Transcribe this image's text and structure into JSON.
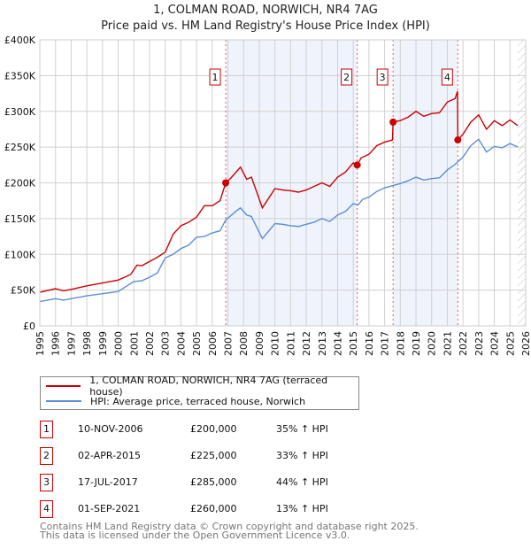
{
  "title": "1, COLMAN ROAD, NORWICH, NR4 7AG",
  "subtitle": "Price paid vs. HM Land Registry's House Price Index (HPI)",
  "colors": {
    "property": "#cc0000",
    "hpi": "#5b8fd4",
    "shade": "#eef3fc"
  },
  "chart_data": {
    "type": "line",
    "xlim": [
      1995,
      2026
    ],
    "ylim": [
      0,
      400000
    ],
    "x_ticks": [
      "1995",
      "1996",
      "1997",
      "1998",
      "1999",
      "2000",
      "2001",
      "2002",
      "2003",
      "2004",
      "2005",
      "2006",
      "2007",
      "2008",
      "2009",
      "2010",
      "2011",
      "2012",
      "2013",
      "2014",
      "2015",
      "2016",
      "2017",
      "2018",
      "2019",
      "2020",
      "2021",
      "2022",
      "2023",
      "2024",
      "2025",
      "2026"
    ],
    "y_ticks": [
      {
        "v": 0,
        "label": "£0"
      },
      {
        "v": 50000,
        "label": "£50K"
      },
      {
        "v": 100000,
        "label": "£100K"
      },
      {
        "v": 150000,
        "label": "£150K"
      },
      {
        "v": 200000,
        "label": "£200K"
      },
      {
        "v": 250000,
        "label": "£250K"
      },
      {
        "v": 300000,
        "label": "£300K"
      },
      {
        "v": 350000,
        "label": "£350K"
      },
      {
        "v": 400000,
        "label": "£400K"
      }
    ],
    "grid": true,
    "series": [
      {
        "name": "1, COLMAN ROAD, NORWICH, NR4 7AG (terraced house)",
        "color": "#cc0000",
        "x": [
          1995,
          1996,
          1996.5,
          1997,
          1998,
          1999,
          2000,
          2000.8,
          2001.2,
          2001.5,
          2002,
          2002.5,
          2003,
          2003.5,
          2004,
          2004.5,
          2005,
          2005.5,
          2006,
          2006.5,
          2006.86,
          2007.2,
          2007.8,
          2008.2,
          2008.5,
          2009.2,
          2010,
          2010.5,
          2011,
          2011.5,
          2012,
          2012.5,
          2013,
          2013.5,
          2014,
          2014.5,
          2015,
          2015.25,
          2015.5,
          2016,
          2016.5,
          2017,
          2017.5,
          2017.54,
          2018,
          2018.5,
          2019,
          2019.5,
          2020,
          2020.5,
          2021,
          2021.5,
          2021.65,
          2021.67,
          2022,
          2022.5,
          2023,
          2023.5,
          2024,
          2024.5,
          2025,
          2025.5
        ],
        "y": [
          47000,
          52000,
          49000,
          51000,
          56000,
          60000,
          64000,
          72000,
          85000,
          84000,
          90000,
          96000,
          103000,
          128000,
          140000,
          145000,
          152000,
          168000,
          168000,
          175000,
          200000,
          207000,
          222000,
          205000,
          208000,
          165000,
          192000,
          190000,
          189000,
          187000,
          190000,
          195000,
          200000,
          195000,
          208000,
          215000,
          228000,
          225000,
          235000,
          240000,
          252000,
          257000,
          260000,
          285000,
          287000,
          292000,
          300000,
          293000,
          297000,
          298000,
          313000,
          318000,
          328000,
          260000,
          268000,
          285000,
          295000,
          275000,
          287000,
          280000,
          288000,
          280000
        ]
      },
      {
        "name": "HPI: Average price, terraced house, Norwich",
        "color": "#5b8fd4",
        "x": [
          1995,
          1996,
          1996.5,
          1997,
          1998,
          1999,
          2000,
          2001,
          2001.5,
          2002,
          2002.5,
          2003,
          2003.5,
          2004,
          2004.5,
          2005,
          2005.5,
          2006,
          2006.5,
          2006.86,
          2007.5,
          2007.8,
          2008.2,
          2008.5,
          2009.2,
          2010,
          2010.5,
          2011,
          2011.5,
          2012,
          2012.5,
          2013,
          2013.5,
          2014,
          2014.5,
          2015,
          2015.3,
          2015.6,
          2016,
          2016.5,
          2017,
          2017.5,
          2018,
          2018.5,
          2019,
          2019.5,
          2020,
          2020.5,
          2021,
          2021.5,
          2022,
          2022.5,
          2023,
          2023.5,
          2024,
          2024.5,
          2025,
          2025.5
        ],
        "y": [
          34000,
          38000,
          36000,
          38000,
          42000,
          45000,
          48000,
          62000,
          63000,
          68000,
          74000,
          95000,
          100000,
          108000,
          113000,
          124000,
          125000,
          130000,
          133000,
          148000,
          160000,
          165000,
          155000,
          153000,
          122000,
          143000,
          142000,
          140000,
          139000,
          142000,
          145000,
          150000,
          146000,
          155000,
          160000,
          171000,
          169000,
          177000,
          180000,
          188000,
          193000,
          196000,
          199000,
          203000,
          208000,
          204000,
          206000,
          207000,
          218000,
          226000,
          236000,
          252000,
          261000,
          243000,
          251000,
          249000,
          255000,
          250000
        ]
      }
    ],
    "sales": [
      {
        "label": "1",
        "x": 2006.86,
        "y": 200000,
        "date": "10-NOV-2006",
        "price": "£200,000",
        "hpi": "35% ↑ HPI"
      },
      {
        "label": "2",
        "x": 2015.25,
        "y": 225000,
        "date": "02-APR-2015",
        "price": "£225,000",
        "hpi": "33% ↑ HPI"
      },
      {
        "label": "3",
        "x": 2017.54,
        "y": 285000,
        "date": "17-JUL-2017",
        "price": "£285,000",
        "hpi": "44% ↑ HPI"
      },
      {
        "label": "4",
        "x": 2021.67,
        "y": 260000,
        "date": "01-SEP-2021",
        "price": "£260,000",
        "hpi": "13% ↑ HPI"
      }
    ],
    "shaded_ranges": [
      [
        2006.86,
        2015.25
      ],
      [
        2017.54,
        2021.67
      ]
    ],
    "forecast_hatch_from": 2025.5
  },
  "legend": {
    "property": "1, COLMAN ROAD, NORWICH, NR4 7AG (terraced house)",
    "hpi": "HPI: Average price, terraced house, Norwich"
  },
  "footer": {
    "line1": "Contains HM Land Registry data © Crown copyright and database right 2025.",
    "line2": "This data is licensed under the Open Government Licence v3.0."
  }
}
